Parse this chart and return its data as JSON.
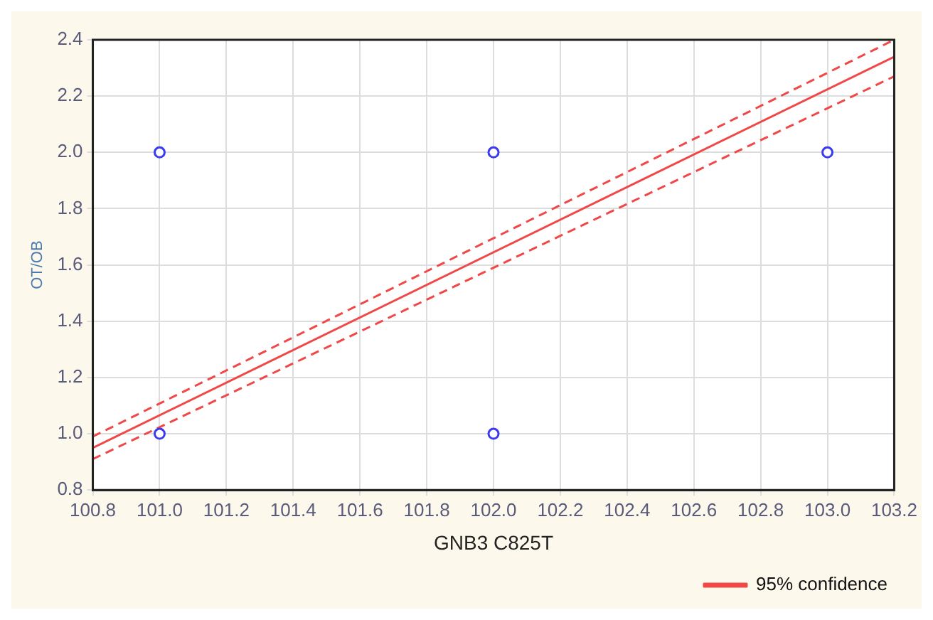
{
  "chart_data": {
    "type": "scatter",
    "xlabel": "GNB3 C825T",
    "ylabel": "OT/OB",
    "xlim": [
      100.8,
      103.2
    ],
    "xticks": [
      100.8,
      {
        "value": 101,
        "label": "101.0"
      },
      101.2,
      101.4,
      101.6,
      101.8,
      {
        "value": 102,
        "label": "102.0"
      },
      102.2,
      102.4,
      102.6,
      102.8,
      {
        "value": 103,
        "label": "103.0"
      },
      103.2
    ],
    "ylim": [
      0.8,
      2.4
    ],
    "yticks": [
      0.8,
      {
        "value": 1,
        "label": "1.0"
      },
      1.2,
      1.4,
      1.6,
      1.8,
      {
        "value": 2,
        "label": "2.0"
      },
      2.2,
      2.4
    ],
    "grid": true,
    "legend": "bottom right",
    "series": [
      {
        "color": "#3a3af0",
        "marker": "circle",
        "x": [
          101.0,
          101.0,
          102.0,
          102.0,
          103.0
        ],
        "values": [
          1.0,
          2.0,
          1.0,
          2.0,
          2.0
        ]
      },
      {
        "type": "line",
        "name": "95% confidence",
        "color": "#f04848",
        "marker": "none",
        "line_style": "solid",
        "x": [
          100.8,
          103.2
        ],
        "values": [
          0.95,
          2.34
        ]
      },
      {
        "type": "line",
        "color": "#f04848",
        "marker": "none",
        "line_style": "dashed",
        "x": [
          100.8,
          103.2
        ],
        "values": [
          0.99,
          2.4
        ]
      },
      {
        "type": "line",
        "color": "#f04848",
        "marker": "none",
        "line_style": "dashed",
        "x": [
          100.8,
          103.2
        ],
        "values": [
          0.91,
          2.27
        ]
      }
    ]
  }
}
